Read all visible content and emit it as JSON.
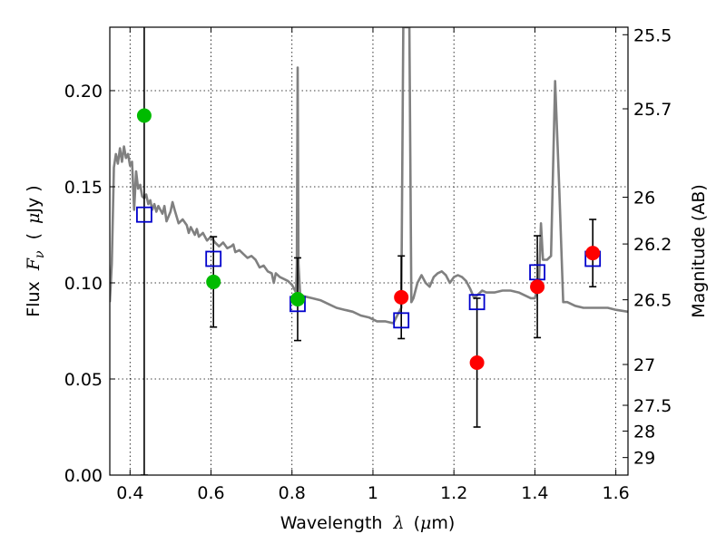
{
  "chart_data": {
    "type": "scatter",
    "xlabel_text": "Wavelength",
    "xlabel_symbol": "λ",
    "xlabel_unit_open": "(",
    "xlabel_unit_mu": "μ",
    "xlabel_unit_rest": "m)",
    "ylabel_text": "Flux",
    "ylabel_symbol": "F",
    "ylabel_subscript": "ν",
    "ylabel_unit_open": "(",
    "ylabel_unit_mu": "μ",
    "ylabel_unit_rest": "Jy )",
    "y2label": "Magnitude (AB)",
    "xlim": [
      0.35,
      1.63
    ],
    "ylim": [
      0.0,
      0.233
    ],
    "grid": true,
    "x_ticks": [
      0.4,
      0.6,
      0.8,
      1.0,
      1.2,
      1.4,
      1.6
    ],
    "x_tick_labels": [
      "0.4",
      "0.6",
      "0.8",
      "1",
      "1.2",
      "1.4",
      "1.6"
    ],
    "y_ticks": [
      0.0,
      0.05,
      0.1,
      0.15,
      0.2
    ],
    "y_tick_labels": [
      "0.00",
      "0.05",
      "0.10",
      "0.15",
      "0.20"
    ],
    "mag_ticks": [
      25.5,
      25.7,
      26,
      26.2,
      26.5,
      27,
      27.5,
      28,
      29
    ],
    "mag_tick_labels": [
      "25.5",
      "25.7",
      "26",
      "26.2",
      "26.5",
      "27",
      "27.5",
      "28",
      "29"
    ],
    "colors": {
      "model": "#808080",
      "green": "#00bb00",
      "red": "#ff0000",
      "model_box": "#0000cc",
      "errorbar": "#000000"
    },
    "observed": [
      {
        "x": 0.435,
        "y": 0.187,
        "yerr_low": 0.187,
        "yerr_high": 0.187,
        "color": "green"
      },
      {
        "x": 0.606,
        "y": 0.1005,
        "yerr_low": 0.0235,
        "yerr_high": 0.0235,
        "color": "green"
      },
      {
        "x": 0.814,
        "y": 0.0915,
        "yerr_low": 0.0215,
        "yerr_high": 0.0215,
        "color": "green"
      },
      {
        "x": 1.07,
        "y": 0.0925,
        "yerr_low": 0.0215,
        "yerr_high": 0.0215,
        "color": "red"
      },
      {
        "x": 1.257,
        "y": 0.0585,
        "yerr_low": 0.0335,
        "yerr_high": 0.0335,
        "color": "red"
      },
      {
        "x": 1.406,
        "y": 0.098,
        "yerr_low": 0.0265,
        "yerr_high": 0.0265,
        "color": "red"
      },
      {
        "x": 1.543,
        "y": 0.1155,
        "yerr_low": 0.0175,
        "yerr_high": 0.0175,
        "color": "red"
      }
    ],
    "model_boxes": [
      {
        "x": 0.435,
        "y": 0.1355
      },
      {
        "x": 0.606,
        "y": 0.1125
      },
      {
        "x": 0.814,
        "y": 0.089
      },
      {
        "x": 1.07,
        "y": 0.0805
      },
      {
        "x": 1.257,
        "y": 0.09
      },
      {
        "x": 1.406,
        "y": 0.1055
      },
      {
        "x": 1.543,
        "y": 0.1125
      }
    ],
    "model_spectrum": [
      [
        0.35,
        0.09
      ],
      [
        0.355,
        0.11
      ],
      [
        0.36,
        0.16
      ],
      [
        0.365,
        0.167
      ],
      [
        0.37,
        0.162
      ],
      [
        0.375,
        0.17
      ],
      [
        0.38,
        0.163
      ],
      [
        0.385,
        0.171
      ],
      [
        0.39,
        0.165
      ],
      [
        0.395,
        0.167
      ],
      [
        0.4,
        0.161
      ],
      [
        0.405,
        0.163
      ],
      [
        0.41,
        0.138
      ],
      [
        0.415,
        0.158
      ],
      [
        0.42,
        0.149
      ],
      [
        0.425,
        0.151
      ],
      [
        0.43,
        0.145
      ],
      [
        0.435,
        0.144
      ],
      [
        0.44,
        0.146
      ],
      [
        0.445,
        0.141
      ],
      [
        0.45,
        0.143
      ],
      [
        0.455,
        0.138
      ],
      [
        0.46,
        0.141
      ],
      [
        0.465,
        0.137
      ],
      [
        0.47,
        0.14
      ],
      [
        0.48,
        0.136
      ],
      [
        0.485,
        0.14
      ],
      [
        0.49,
        0.132
      ],
      [
        0.5,
        0.137
      ],
      [
        0.505,
        0.142
      ],
      [
        0.51,
        0.138
      ],
      [
        0.52,
        0.131
      ],
      [
        0.53,
        0.133
      ],
      [
        0.54,
        0.13
      ],
      [
        0.545,
        0.126
      ],
      [
        0.55,
        0.129
      ],
      [
        0.56,
        0.125
      ],
      [
        0.565,
        0.128
      ],
      [
        0.57,
        0.124
      ],
      [
        0.58,
        0.126
      ],
      [
        0.59,
        0.122
      ],
      [
        0.6,
        0.124
      ],
      [
        0.61,
        0.121
      ],
      [
        0.62,
        0.119
      ],
      [
        0.63,
        0.121
      ],
      [
        0.64,
        0.118
      ],
      [
        0.65,
        0.119
      ],
      [
        0.655,
        0.12
      ],
      [
        0.66,
        0.116
      ],
      [
        0.67,
        0.117
      ],
      [
        0.68,
        0.115
      ],
      [
        0.69,
        0.113
      ],
      [
        0.7,
        0.114
      ],
      [
        0.71,
        0.112
      ],
      [
        0.72,
        0.108
      ],
      [
        0.73,
        0.109
      ],
      [
        0.74,
        0.106
      ],
      [
        0.75,
        0.105
      ],
      [
        0.755,
        0.1
      ],
      [
        0.76,
        0.105
      ],
      [
        0.77,
        0.103
      ],
      [
        0.78,
        0.102
      ],
      [
        0.79,
        0.101
      ],
      [
        0.8,
        0.099
      ],
      [
        0.805,
        0.097
      ],
      [
        0.81,
        0.095
      ],
      [
        0.812,
        0.11
      ],
      [
        0.814,
        0.212
      ],
      [
        0.816,
        0.11
      ],
      [
        0.82,
        0.094
      ],
      [
        0.83,
        0.093
      ],
      [
        0.85,
        0.092
      ],
      [
        0.87,
        0.091
      ],
      [
        0.89,
        0.089
      ],
      [
        0.91,
        0.087
      ],
      [
        0.93,
        0.086
      ],
      [
        0.95,
        0.085
      ],
      [
        0.97,
        0.083
      ],
      [
        0.99,
        0.082
      ],
      [
        1.01,
        0.08
      ],
      [
        1.03,
        0.08
      ],
      [
        1.05,
        0.079
      ],
      [
        1.06,
        0.083
      ],
      [
        1.065,
        0.085
      ],
      [
        1.07,
        0.087
      ],
      [
        1.075,
        0.233
      ],
      [
        1.085,
        0.233
      ],
      [
        1.09,
        0.233
      ],
      [
        1.095,
        0.09
      ],
      [
        1.1,
        0.092
      ],
      [
        1.11,
        0.1
      ],
      [
        1.12,
        0.104
      ],
      [
        1.13,
        0.1
      ],
      [
        1.14,
        0.098
      ],
      [
        1.15,
        0.103
      ],
      [
        1.16,
        0.105
      ],
      [
        1.17,
        0.106
      ],
      [
        1.18,
        0.104
      ],
      [
        1.19,
        0.1
      ],
      [
        1.2,
        0.103
      ],
      [
        1.21,
        0.104
      ],
      [
        1.22,
        0.103
      ],
      [
        1.23,
        0.101
      ],
      [
        1.24,
        0.097
      ],
      [
        1.25,
        0.092
      ],
      [
        1.26,
        0.094
      ],
      [
        1.27,
        0.096
      ],
      [
        1.28,
        0.095
      ],
      [
        1.3,
        0.095
      ],
      [
        1.32,
        0.096
      ],
      [
        1.34,
        0.096
      ],
      [
        1.36,
        0.095
      ],
      [
        1.38,
        0.093
      ],
      [
        1.39,
        0.092
      ],
      [
        1.4,
        0.092
      ],
      [
        1.41,
        0.1
      ],
      [
        1.415,
        0.131
      ],
      [
        1.42,
        0.112
      ],
      [
        1.43,
        0.112
      ],
      [
        1.44,
        0.114
      ],
      [
        1.45,
        0.205
      ],
      [
        1.46,
        0.15
      ],
      [
        1.47,
        0.09
      ],
      [
        1.48,
        0.09
      ],
      [
        1.5,
        0.088
      ],
      [
        1.52,
        0.087
      ],
      [
        1.54,
        0.087
      ],
      [
        1.56,
        0.087
      ],
      [
        1.58,
        0.087
      ],
      [
        1.6,
        0.086
      ],
      [
        1.63,
        0.085
      ]
    ]
  }
}
